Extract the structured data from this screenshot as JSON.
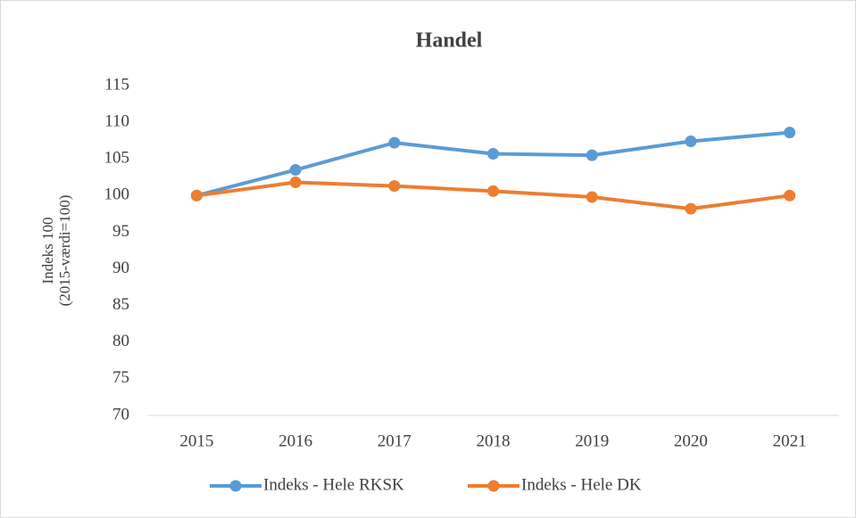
{
  "chart_data": {
    "type": "line",
    "title": "Handel",
    "ylabel": [
      "Indeks 100",
      "(2015-værdi=100)"
    ],
    "categories": [
      "2015",
      "2016",
      "2017",
      "2018",
      "2019",
      "2020",
      "2021"
    ],
    "series": [
      {
        "name": "Indeks - Hele RKSK",
        "color": "#5b9bd5",
        "values": [
          100,
          103.5,
          107.2,
          105.7,
          105.5,
          107.4,
          108.6
        ]
      },
      {
        "name": "Indeks - Hele DK",
        "color": "#ed7d31",
        "values": [
          100,
          101.8,
          101.3,
          100.6,
          99.8,
          98.2,
          100
        ]
      }
    ],
    "ylim": [
      70,
      115
    ],
    "yticks": [
      70,
      75,
      80,
      85,
      90,
      95,
      100,
      105,
      110,
      115
    ],
    "grid": false,
    "legend": "bottom"
  }
}
